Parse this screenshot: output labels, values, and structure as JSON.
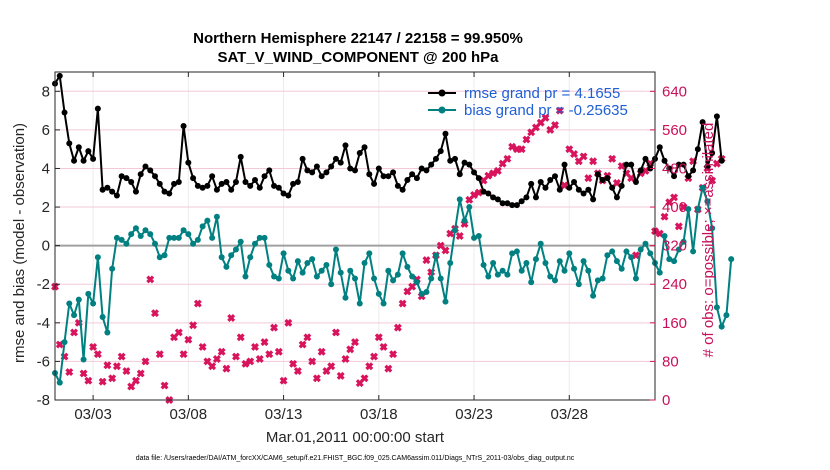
{
  "chart_data": {
    "type": "line",
    "title": "Northern Hemisphere 22147 / 22158 = 99.950%",
    "subtitle": "SAT_V_WIND_COMPONENT @ 200 hPa",
    "xlabel": "Mar.01,2011 00:00:00 start",
    "ylabel": "rmse and bias (model - observation)",
    "y2label": "# of obs: o=possible; ×=assimilated",
    "footer": "data file: /Users/raeder/DAI/ATM_forcXX/CAM6_setup/f.e21.FHIST_BGC.f09_025.CAM6assim.011/Diags_NTrS_2011-03/obs_diag_output.nc",
    "xlim": [
      0,
      31.5
    ],
    "ylim": [
      -8,
      9
    ],
    "y2lim": [
      0,
      680
    ],
    "x_ticks": [
      2,
      7,
      12,
      17,
      22,
      27
    ],
    "x_tick_labels": [
      "03/03",
      "03/08",
      "03/13",
      "03/18",
      "03/23",
      "03/28"
    ],
    "y_ticks": [
      -8,
      -6,
      -4,
      -2,
      0,
      2,
      4,
      6,
      8
    ],
    "y2_ticks": [
      0,
      80,
      160,
      240,
      320,
      400,
      480,
      560,
      640
    ],
    "grid": true,
    "zero_line": true,
    "legend_position": "top-right",
    "x_step_days": 0.25,
    "colors": {
      "rmse": "#000000",
      "bias": "#008080",
      "obs": "#d8145c"
    },
    "series": [
      {
        "name": "rmse grand pr = 4.1655",
        "values": [
          8.4,
          8.8,
          6.9,
          5.3,
          4.4,
          5.1,
          4.4,
          4.9,
          4.5,
          7.1,
          2.9,
          3.0,
          2.8,
          2.6,
          3.6,
          3.5,
          3.3,
          2.8,
          3.7,
          4.1,
          3.9,
          3.6,
          3.2,
          2.8,
          2.7,
          3.2,
          3.3,
          6.2,
          4.3,
          3.5,
          3.1,
          3.0,
          3.1,
          3.6,
          2.9,
          3.2,
          3.3,
          2.9,
          3.3,
          4.6,
          3.3,
          3.1,
          3.4,
          3.0,
          3.6,
          3.9,
          3.1,
          3.0,
          2.7,
          2.6,
          3.2,
          3.3,
          4.5,
          3.9,
          3.8,
          4.1,
          3.6,
          3.8,
          4.1,
          4.5,
          4.3,
          5.2,
          4.0,
          3.9,
          4.8,
          5.1,
          3.7,
          3.2,
          4.0,
          3.6,
          3.6,
          3.8,
          3.1,
          2.9,
          3.4,
          3.7,
          3.5,
          4.0,
          3.9,
          4.2,
          4.5,
          4.9,
          5.8,
          4.4,
          4.5,
          3.7,
          4.3,
          4.2,
          3.8,
          3.5,
          2.8,
          2.7,
          2.5,
          2.4,
          2.2,
          2.2,
          2.1,
          2.1,
          2.3,
          2.5,
          3.2,
          2.5,
          3.3,
          3.0,
          3.4,
          3.6,
          2.9,
          4.2,
          3.0,
          3.3,
          2.9,
          2.7,
          2.9,
          2.4,
          3.7,
          3.4,
          3.5,
          3.0,
          2.5,
          3.1,
          4.2,
          4.2,
          3.3,
          3.9,
          4.5,
          4.0,
          4.5,
          5.1,
          4.4,
          4.0,
          3.6,
          4.2,
          4.2,
          3.6,
          3.9,
          5.0,
          6.4,
          4.1,
          4.8,
          6.7,
          4.4
        ]
      },
      {
        "name": "bias grand pr = -0.25635",
        "values": [
          -6.6,
          -7.1,
          -5.0,
          -3.0,
          -3.6,
          -2.8,
          -5.9,
          -2.5,
          -3.0,
          -0.6,
          -3.7,
          -4.5,
          -1.2,
          0.4,
          0.3,
          0.1,
          0.6,
          0.9,
          0.5,
          0.8,
          0.6,
          0.1,
          -0.6,
          -0.5,
          0.4,
          0.4,
          0.4,
          0.8,
          0.6,
          0.1,
          0.3,
          1.0,
          1.3,
          0.4,
          1.5,
          -0.6,
          -1.1,
          -0.5,
          -0.2,
          0.2,
          -1.6,
          -0.6,
          0.1,
          0.4,
          0.4,
          -1.0,
          -1.6,
          -1.7,
          -0.4,
          -1.3,
          -1.7,
          -0.8,
          -1.4,
          -0.9,
          -0.7,
          -1.6,
          -1.3,
          -1.0,
          -2.0,
          -0.2,
          -1.4,
          -2.7,
          -1.3,
          -1.7,
          -3.0,
          -0.9,
          -0.4,
          -1.7,
          -2.5,
          -3.0,
          -1.3,
          -1.8,
          -1.5,
          -0.4,
          -1.1,
          -1.6,
          -1.9,
          -2.5,
          -2.4,
          -1.7,
          -0.5,
          -1.7,
          -2.9,
          -0.9,
          0.8,
          2.4,
          1.3,
          2.0,
          0.4,
          0.5,
          -1.0,
          -1.6,
          -0.9,
          -1.5,
          -1.3,
          -1.5,
          -0.4,
          -0.3,
          -1.3,
          -0.9,
          -1.9,
          -0.7,
          0.1,
          -0.9,
          -1.6,
          -1.8,
          -0.8,
          -1.3,
          -0.4,
          -1.2,
          -2.0,
          -0.8,
          -1.3,
          -2.6,
          -1.8,
          -1.7,
          -0.5,
          -0.3,
          -0.8,
          -1.2,
          -0.3,
          -0.6,
          -1.7,
          -0.2,
          0.1,
          -0.4,
          -0.9,
          -1.4,
          0.5,
          -0.7,
          -0.8,
          -0.2,
          0.2,
          1.9,
          -0.3,
          1.9,
          3.0,
          2.3,
          0.9,
          -3.2,
          -4.2,
          -3.6,
          -0.7
        ]
      }
    ],
    "obs_counts_possible": [
      235,
      115,
      90,
      58,
      140,
      160,
      55,
      40,
      110,
      95,
      38,
      72,
      45,
      70,
      90,
      60,
      28,
      40,
      55,
      80,
      250,
      180,
      95,
      30,
      0,
      130,
      140,
      95,
      125,
      155,
      200,
      110,
      80,
      70,
      85,
      100,
      65,
      170,
      90,
      130,
      75,
      80,
      110,
      85,
      120,
      95,
      150,
      100,
      40,
      160,
      75,
      60,
      115,
      130,
      80,
      45,
      100,
      60,
      70,
      140,
      50,
      85,
      105,
      120,
      35,
      45,
      70,
      90,
      130,
      110,
      65,
      95,
      150,
      200,
      225,
      235,
      250,
      215,
      290,
      265,
      300,
      320,
      310,
      345,
      355,
      340,
      365,
      415,
      425,
      430,
      455,
      465,
      470,
      475,
      490,
      500,
      525,
      520,
      520,
      540,
      555,
      565,
      575,
      585,
      560,
      570,
      600,
      445,
      520,
      510,
      495,
      505,
      460,
      495,
      470,
      455,
      465,
      500,
      450,
      485,
      470,
      460,
      300,
      470,
      475,
      490,
      350,
      345,
      380,
      410,
      420,
      360,
      400,
      460,
      495,
      395,
      440,
      480,
      455,
      490,
      500
    ]
  }
}
